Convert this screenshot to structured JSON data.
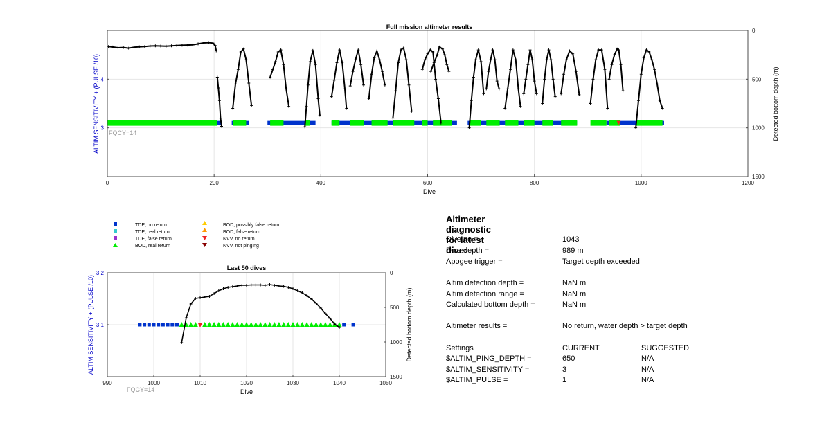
{
  "colors": {
    "blue_axis": "#0000c8",
    "tde_no_return": "#0033cc",
    "tde_real_return": "#33cccc",
    "tde_false_return": "#9933cc",
    "bod_real_return": "#00ee00",
    "bod_possibly_false": "#ffcc00",
    "bod_false": "#ff9900",
    "nvv_no_return": "#ee2222",
    "nvv_not_pinging": "#880000",
    "trace": "#000000",
    "grid": "#e6e6e6",
    "fqcy": "#999999"
  },
  "chart_data": [
    {
      "type": "scatter",
      "title": "Full mission altimeter results",
      "xlabel": "Dive",
      "ylabel": "ALTIM SENSITIVITY + (PULSE /10)",
      "ylabel_right": "Detected bottom depth (m)",
      "annotation": "FQCY=14",
      "xlim": [
        0,
        1200
      ],
      "ylim": [
        2,
        5
      ],
      "ylim_right": [
        0,
        1500
      ],
      "right_axis_reversed": true,
      "xticks": [
        0,
        200,
        400,
        600,
        800,
        1000,
        1200
      ],
      "yticks": [
        3,
        4
      ],
      "yticks_right": [
        0,
        500,
        1000,
        1500
      ],
      "grid": true,
      "tde_no_return_ranges": [
        [
          0,
          215
        ],
        [
          233,
          265
        ],
        [
          300,
          390
        ],
        [
          420,
          590
        ],
        [
          600,
          655
        ],
        [
          675,
          880
        ],
        [
          935,
          1043
        ]
      ],
      "bod_real_return_ranges": [
        [
          0,
          205
        ],
        [
          235,
          260
        ],
        [
          305,
          330
        ],
        [
          370,
          380
        ],
        [
          420,
          435
        ],
        [
          455,
          480
        ],
        [
          495,
          525
        ],
        [
          535,
          575
        ],
        [
          590,
          600
        ],
        [
          610,
          645
        ],
        [
          678,
          700
        ],
        [
          710,
          735
        ],
        [
          745,
          770
        ],
        [
          780,
          800
        ],
        [
          815,
          835
        ],
        [
          850,
          880
        ],
        [
          905,
          935
        ],
        [
          940,
          960
        ],
        [
          990,
          1040
        ]
      ],
      "nvv_no_return_dives": [
        958
      ],
      "depth_trace_dives": [
        [
          [
            2,
            165
          ],
          [
            10,
            170
          ],
          [
            20,
            178
          ],
          [
            30,
            175
          ],
          [
            40,
            182
          ],
          [
            50,
            172
          ],
          [
            60,
            168
          ],
          [
            70,
            165
          ],
          [
            80,
            160
          ],
          [
            90,
            158
          ],
          [
            100,
            160
          ],
          [
            110,
            162
          ],
          [
            120,
            158
          ],
          [
            130,
            155
          ],
          [
            140,
            152
          ],
          [
            150,
            150
          ],
          [
            160,
            148
          ],
          [
            170,
            138
          ],
          [
            180,
            128
          ],
          [
            190,
            125
          ],
          [
            198,
            130
          ],
          [
            202,
            155
          ],
          [
            204,
            210
          ]
        ],
        [
          [
            206,
            480
          ],
          [
            208,
            590
          ],
          [
            210,
            720
          ],
          [
            212,
            900
          ],
          [
            214,
            985
          ]
        ],
        [
          [
            235,
            800
          ],
          [
            240,
            550
          ],
          [
            245,
            400
          ],
          [
            250,
            220
          ],
          [
            255,
            190
          ],
          [
            260,
            300
          ],
          [
            265,
            540
          ],
          [
            270,
            770
          ]
        ],
        [
          [
            305,
            480
          ],
          [
            310,
            400
          ],
          [
            315,
            320
          ],
          [
            320,
            220
          ],
          [
            325,
            200
          ],
          [
            330,
            350
          ],
          [
            335,
            600
          ],
          [
            340,
            780
          ]
        ],
        [
          [
            370,
            990
          ],
          [
            373,
            780
          ],
          [
            376,
            560
          ],
          [
            380,
            320
          ],
          [
            385,
            205
          ],
          [
            390,
            350
          ],
          [
            395,
            700
          ],
          [
            398,
            870
          ]
        ],
        [
          [
            420,
            680
          ],
          [
            425,
            510
          ],
          [
            430,
            330
          ],
          [
            435,
            200
          ],
          [
            440,
            330
          ],
          [
            445,
            600
          ],
          [
            448,
            800
          ]
        ],
        [
          [
            455,
            570
          ],
          [
            460,
            420
          ],
          [
            465,
            300
          ],
          [
            470,
            200
          ],
          [
            475,
            350
          ],
          [
            480,
            560
          ]
        ],
        [
          [
            490,
            700
          ],
          [
            495,
            450
          ],
          [
            500,
            280
          ],
          [
            505,
            210
          ],
          [
            510,
            300
          ],
          [
            515,
            420
          ],
          [
            520,
            560
          ]
        ],
        [
          [
            535,
            900
          ],
          [
            540,
            620
          ],
          [
            545,
            330
          ],
          [
            550,
            200
          ],
          [
            555,
            180
          ],
          [
            560,
            300
          ],
          [
            565,
            560
          ],
          [
            570,
            830
          ]
        ],
        [
          [
            590,
            400
          ],
          [
            595,
            300
          ],
          [
            600,
            240
          ],
          [
            605,
            200
          ],
          [
            610,
            220
          ],
          [
            615,
            500
          ],
          [
            620,
            700
          ],
          [
            625,
            950
          ]
        ],
        [
          [
            606,
            420
          ],
          [
            612,
            330
          ],
          [
            618,
            250
          ],
          [
            622,
            170
          ],
          [
            628,
            190
          ],
          [
            632,
            250
          ],
          [
            636,
            350
          ],
          [
            640,
            420
          ]
        ],
        [
          [
            678,
            1000
          ],
          [
            682,
            720
          ],
          [
            686,
            480
          ],
          [
            690,
            300
          ],
          [
            695,
            200
          ],
          [
            700,
            320
          ],
          [
            705,
            650
          ]
        ],
        [
          [
            710,
            600
          ],
          [
            714,
            420
          ],
          [
            718,
            300
          ],
          [
            722,
            200
          ],
          [
            726,
            300
          ],
          [
            730,
            520
          ],
          [
            734,
            600
          ]
        ],
        [
          [
            745,
            800
          ],
          [
            750,
            600
          ],
          [
            755,
            400
          ],
          [
            760,
            200
          ],
          [
            765,
            300
          ],
          [
            770,
            600
          ],
          [
            774,
            780
          ]
        ],
        [
          [
            780,
            650
          ],
          [
            784,
            500
          ],
          [
            788,
            350
          ],
          [
            792,
            200
          ],
          [
            796,
            300
          ],
          [
            800,
            520
          ],
          [
            804,
            650
          ]
        ],
        [
          [
            815,
            750
          ],
          [
            819,
            500
          ],
          [
            823,
            300
          ],
          [
            827,
            200
          ],
          [
            831,
            300
          ],
          [
            835,
            500
          ],
          [
            839,
            680
          ]
        ],
        [
          [
            850,
            650
          ],
          [
            855,
            450
          ],
          [
            860,
            300
          ],
          [
            866,
            210
          ],
          [
            872,
            240
          ],
          [
            878,
            420
          ],
          [
            884,
            660
          ]
        ],
        [
          [
            905,
            750
          ],
          [
            910,
            500
          ],
          [
            915,
            300
          ],
          [
            920,
            200
          ],
          [
            926,
            200
          ],
          [
            932,
            400
          ],
          [
            937,
            800
          ]
        ],
        [
          [
            940,
            500
          ],
          [
            945,
            350
          ],
          [
            950,
            250
          ],
          [
            955,
            190
          ],
          [
            958,
            200
          ],
          [
            962,
            350
          ],
          [
            966,
            620
          ]
        ],
        [
          [
            990,
            1000
          ],
          [
            995,
            720
          ],
          [
            1000,
            450
          ],
          [
            1005,
            280
          ],
          [
            1010,
            200
          ],
          [
            1015,
            220
          ],
          [
            1020,
            300
          ],
          [
            1025,
            400
          ],
          [
            1030,
            550
          ],
          [
            1035,
            720
          ],
          [
            1040,
            800
          ]
        ]
      ]
    },
    {
      "type": "scatter",
      "title": "Last 50 dives",
      "xlabel": "Dive",
      "ylabel": "ALTIM SENSITIVITY + (PULSE /10)",
      "ylabel_right": "Detected bottom depth (m)",
      "annotation": "FQCY=14",
      "xlim": [
        990,
        1050
      ],
      "ylim": [
        3,
        3.2
      ],
      "ylim_right": [
        0,
        1500
      ],
      "right_axis_reversed": true,
      "xticks": [
        990,
        1000,
        1010,
        1020,
        1030,
        1040,
        1050
      ],
      "yticks": [
        3.1,
        3.2
      ],
      "yticks_right": [
        0,
        500,
        1000,
        1500
      ],
      "grid": true,
      "tde_no_return_dives": [
        997,
        998,
        999,
        1000,
        1001,
        1002,
        1003,
        1004,
        1005,
        1041,
        1043
      ],
      "bod_real_return_dives": [
        1006,
        1007,
        1008,
        1009,
        1011,
        1012,
        1013,
        1014,
        1015,
        1016,
        1017,
        1018,
        1019,
        1020,
        1021,
        1022,
        1023,
        1024,
        1025,
        1026,
        1027,
        1028,
        1029,
        1030,
        1031,
        1032,
        1033,
        1034,
        1035,
        1036,
        1037,
        1038,
        1039,
        1040
      ],
      "nvv_no_return_dives": [
        1010
      ],
      "depth_trace": [
        [
          1006,
          1010
        ],
        [
          1007,
          650
        ],
        [
          1008,
          450
        ],
        [
          1009,
          370
        ],
        [
          1010,
          360
        ],
        [
          1011,
          350
        ],
        [
          1012,
          340
        ],
        [
          1013,
          300
        ],
        [
          1014,
          260
        ],
        [
          1015,
          230
        ],
        [
          1016,
          210
        ],
        [
          1017,
          200
        ],
        [
          1018,
          190
        ],
        [
          1019,
          180
        ],
        [
          1020,
          180
        ],
        [
          1021,
          175
        ],
        [
          1022,
          175
        ],
        [
          1023,
          175
        ],
        [
          1024,
          180
        ],
        [
          1025,
          170
        ],
        [
          1026,
          180
        ],
        [
          1027,
          190
        ],
        [
          1028,
          195
        ],
        [
          1029,
          210
        ],
        [
          1030,
          230
        ],
        [
          1031,
          260
        ],
        [
          1032,
          290
        ],
        [
          1033,
          330
        ],
        [
          1034,
          380
        ],
        [
          1035,
          440
        ],
        [
          1036,
          510
        ],
        [
          1037,
          590
        ],
        [
          1038,
          660
        ],
        [
          1039,
          740
        ],
        [
          1040,
          790
        ]
      ]
    }
  ],
  "legend": {
    "tde_no_return": "TDE, no return",
    "tde_real_return": "TDE, real return",
    "tde_false_return": "TDE, false return",
    "bod_real_return": "BOD, real return",
    "bod_possibly_false_return": "BOD, possibly false return",
    "bod_false_return": "BOD, false return",
    "nvv_no_return": "NVV, no return",
    "nvv_not_pinging": "NVV, not pinging"
  },
  "diagnostic": {
    "title": "Altimeter diagnostic for latest dive:",
    "dive_no_label": "Dive no =",
    "dive_no_value": "1043",
    "dive_depth_label": "Dive depth =",
    "dive_depth_value": "989 m",
    "apogee_label": "Apogee trigger =",
    "apogee_value": "Target depth exceeded",
    "altim_detection_depth_label": "Altim detection depth =",
    "altim_detection_depth_value": "NaN m",
    "altim_detection_range_label": "Altim detection range =",
    "altim_detection_range_value": "NaN m",
    "calc_bottom_depth_label": "Calculated bottom depth =",
    "calc_bottom_depth_value": "NaN m",
    "results_label": "Altimeter results =",
    "results_value": "No return, water depth > target depth",
    "settings_label": "Settings",
    "current_label": "CURRENT",
    "suggested_label": "SUGGESTED",
    "ping_depth_label": "$ALTIM_PING_DEPTH =",
    "ping_depth_current": "650",
    "ping_depth_suggested": "N/A",
    "sensitivity_label": "$ALTIM_SENSITIVITY =",
    "sensitivity_current": "3",
    "sensitivity_suggested": "N/A",
    "pulse_label": "$ALTIM_PULSE =",
    "pulse_current": "1",
    "pulse_suggested": "N/A"
  }
}
